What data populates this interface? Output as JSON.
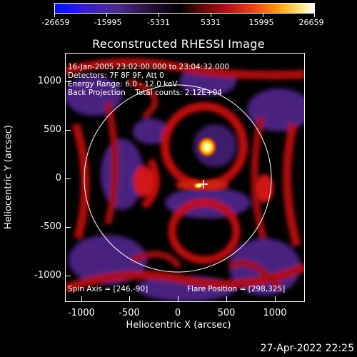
{
  "colorbar": {
    "tick_labels": [
      "-26659",
      "-15995",
      "-5331",
      "5331",
      "15995",
      "26659"
    ]
  },
  "title": "Reconstructed RHESSI Image",
  "info": {
    "line1": "16-Jan-2005 23:02:00.000 to 23:04:32.000",
    "line2": "Detectors: 7F 8F 9F, Att 0",
    "line3": "Energy Range: 6.0 - 12.0 keV",
    "line4": "Back Projection    Total counts: 2.12E+04",
    "spin_axis": "Spin Axis = [246,-90]",
    "flare_position": "Flare Position = [298,325]"
  },
  "axes": {
    "xlabel": "Heliocentric X (arcsec)",
    "ylabel": "Heliocentric Y (arcsec)",
    "x_ticks": [
      "-1000",
      "-500",
      "0",
      "500",
      "1000"
    ],
    "y_ticks": [
      "1000",
      "500",
      "0",
      "-500",
      "-1000"
    ],
    "x_range": [
      -1300,
      1300
    ],
    "y_range": [
      -1270,
      1270
    ]
  },
  "colors": {
    "background": "#000000",
    "axis": "#ffffff",
    "colormap": [
      "#0000ff",
      "#5a2aa0",
      "#000000",
      "#c0101a",
      "#ff7a00",
      "#ffff80",
      "#ffffff"
    ]
  },
  "footer": {
    "date": "27-Apr-2022 22:25"
  }
}
